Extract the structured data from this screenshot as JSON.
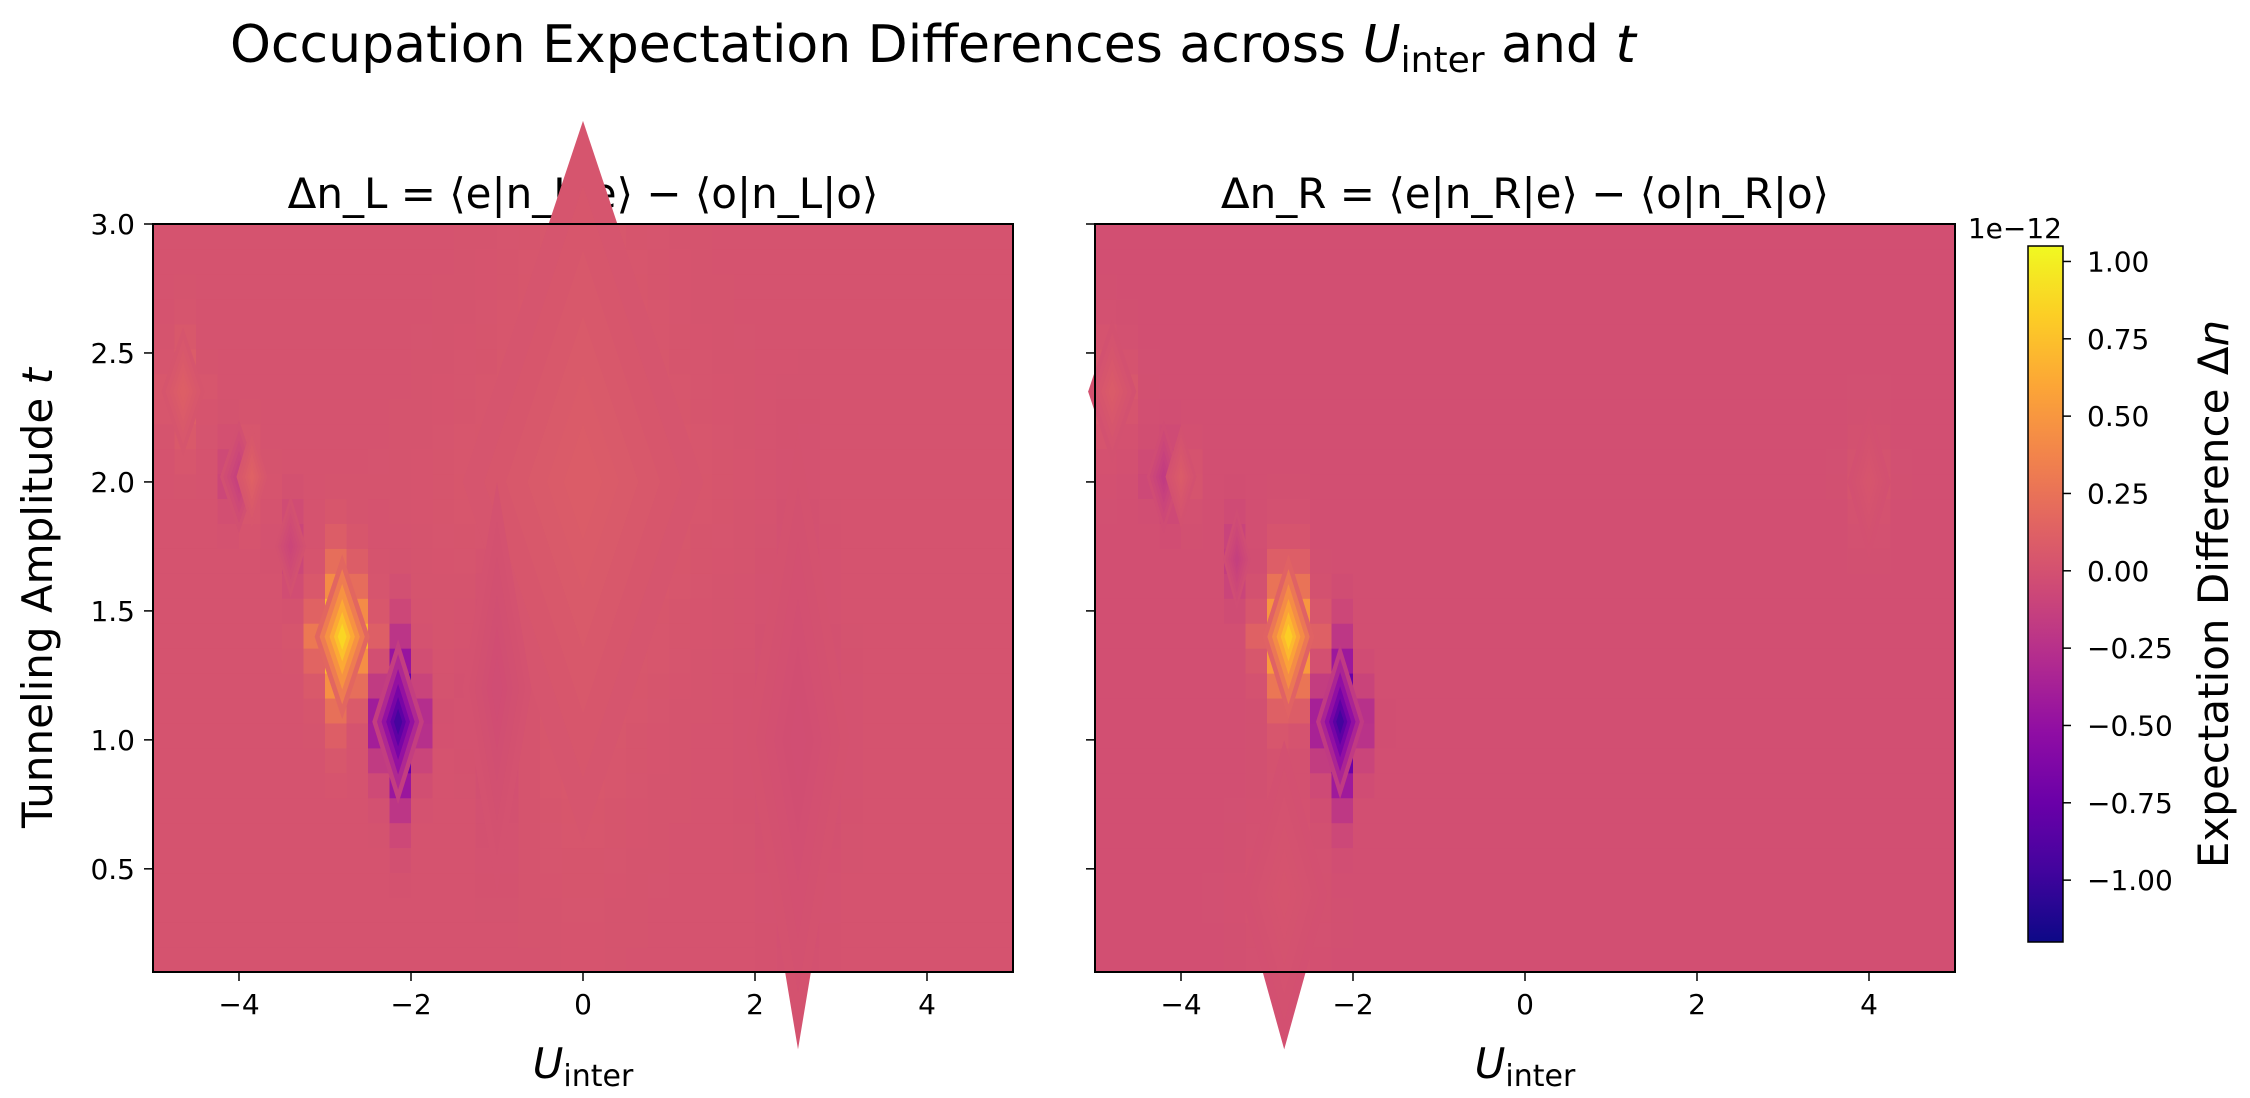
{
  "chart_data": {
    "type": "heatmap",
    "suptitle": {
      "prefix": "Occupation Expectation Differences across ",
      "var1": "U",
      "var1_sub": "inter",
      "middle": " and ",
      "var2": "t"
    },
    "colorbar": {
      "label": "Expectation Difference Δn",
      "scale_text": "1e−12",
      "min": -1.2,
      "max": 1.05,
      "colormap": "plasma",
      "ticks": [
        1.0,
        0.75,
        0.5,
        0.25,
        0.0,
        -0.25,
        -0.5,
        -0.75,
        -1.0
      ],
      "tick_labels": [
        "1.00",
        "0.75",
        "0.50",
        "0.25",
        "0.00",
        "−0.25",
        "−0.50",
        "−0.75",
        "−1.00"
      ]
    },
    "panels": [
      {
        "title": "Δn_L = ⟨e|n_L|e⟩ − ⟨o|n_L|o⟩",
        "xlabel": "U_inter",
        "ylabel": "Tunneling Amplitude t",
        "xlim": [
          -5,
          5
        ],
        "ylim": [
          0.1,
          3.0
        ],
        "xticks": [
          -4,
          -2,
          0,
          2,
          4
        ],
        "xtick_labels": [
          "−4",
          "−2",
          "0",
          "2",
          "4"
        ],
        "yticks": [
          0.5,
          1.0,
          1.5,
          2.0,
          2.5,
          3.0
        ],
        "ytick_labels": [
          "0.5",
          "1.0",
          "1.5",
          "2.0",
          "2.5",
          "3.0"
        ],
        "baseline": 0.02,
        "features": [
          {
            "u": -2.8,
            "t": 1.4,
            "value": 0.98,
            "du": 0.32,
            "dt": 0.32
          },
          {
            "u": -2.15,
            "t": 1.07,
            "value": -1.12,
            "du": 0.3,
            "dt": 0.32
          },
          {
            "u": -4.0,
            "t": 2.02,
            "value": -0.18,
            "du": 0.22,
            "dt": 0.22
          },
          {
            "u": -3.85,
            "t": 2.02,
            "value": 0.12,
            "du": 0.18,
            "dt": 0.2
          },
          {
            "u": -4.65,
            "t": 2.35,
            "value": 0.1,
            "du": 0.25,
            "dt": 0.25
          },
          {
            "u": -3.4,
            "t": 1.75,
            "value": -0.12,
            "du": 0.18,
            "dt": 0.2
          },
          {
            "u": 0.0,
            "t": 2.0,
            "value": 0.08,
            "du": 1.4,
            "dt": 1.4
          },
          {
            "u": -1.0,
            "t": 1.2,
            "value": -0.06,
            "du": 0.4,
            "dt": 0.8
          },
          {
            "u": 2.5,
            "t": 1.0,
            "value": -0.05,
            "du": 0.6,
            "dt": 1.2
          }
        ]
      },
      {
        "title": "Δn_R = ⟨e|n_R|e⟩ − ⟨o|n_R|o⟩",
        "xlabel": "U_inter",
        "ylabel": "",
        "xlim": [
          -5,
          5
        ],
        "ylim": [
          0.1,
          3.0
        ],
        "xticks": [
          -4,
          -2,
          0,
          2,
          4
        ],
        "xtick_labels": [
          "−4",
          "−2",
          "0",
          "2",
          "4"
        ],
        "yticks": [
          0.5,
          1.0,
          1.5,
          2.0,
          2.5,
          3.0
        ],
        "ytick_labels": [
          "",
          "",
          "",
          "",
          "",
          ""
        ],
        "baseline": -0.01,
        "features": [
          {
            "u": -2.75,
            "t": 1.4,
            "value": 0.96,
            "du": 0.3,
            "dt": 0.32
          },
          {
            "u": -2.15,
            "t": 1.07,
            "value": -1.1,
            "du": 0.28,
            "dt": 0.3
          },
          {
            "u": -4.2,
            "t": 2.02,
            "value": -0.18,
            "du": 0.2,
            "dt": 0.22
          },
          {
            "u": -4.0,
            "t": 2.02,
            "value": 0.1,
            "du": 0.18,
            "dt": 0.2
          },
          {
            "u": -4.8,
            "t": 2.35,
            "value": 0.1,
            "du": 0.28,
            "dt": 0.28
          },
          {
            "u": -3.35,
            "t": 1.7,
            "value": -0.14,
            "du": 0.16,
            "dt": 0.2
          },
          {
            "u": -2.8,
            "t": 0.4,
            "value": 0.04,
            "du": 0.5,
            "dt": 0.6
          },
          {
            "u": 4.0,
            "t": 2.0,
            "value": 0.05,
            "du": 0.25,
            "dt": 0.3
          }
        ]
      }
    ]
  }
}
